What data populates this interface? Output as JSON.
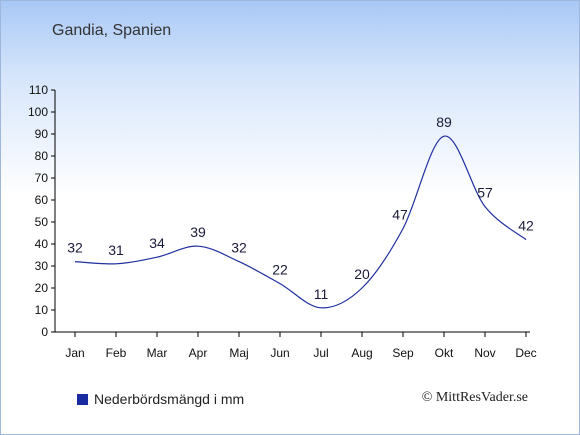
{
  "title": "Gandia, Spanien",
  "legend_label": "Nederbördsmängd i mm",
  "credit": "© MittResVader.se",
  "colors": {
    "line": "#1f2f9f",
    "legend_swatch": "#1a2ba0",
    "axis": "#000000",
    "label": "#1a1a3a"
  },
  "chart_data": {
    "type": "line",
    "categories": [
      "Jan",
      "Feb",
      "Mar",
      "Apr",
      "Maj",
      "Jun",
      "Jul",
      "Aug",
      "Sep",
      "Okt",
      "Nov",
      "Dec"
    ],
    "series": [
      {
        "name": "Nederbördsmängd i mm",
        "values": [
          32,
          31,
          34,
          39,
          32,
          22,
          11,
          20,
          47,
          89,
          57,
          42
        ]
      }
    ],
    "ylim": [
      0,
      110
    ],
    "yticks": [
      0,
      10,
      20,
      30,
      40,
      50,
      60,
      70,
      80,
      90,
      100,
      110
    ],
    "grid": false,
    "legend_position": "bottom-left"
  }
}
